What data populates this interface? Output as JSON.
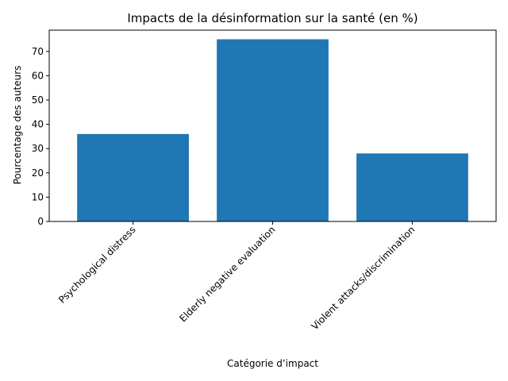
{
  "chart_data": {
    "type": "bar",
    "title": "Impacts de la désinformation sur la santé (en %)",
    "xlabel": "Catégorie d’impact",
    "ylabel": "Pourcentage des auteurs",
    "categories": [
      "Psychological distress",
      "Elderly negative evaluation",
      "Violent attacks/discrimination"
    ],
    "values": [
      36,
      75,
      28
    ],
    "ylim": [
      0,
      78.75
    ],
    "yticks": [
      0,
      10,
      20,
      30,
      40,
      50,
      60,
      70
    ],
    "bar_color": "#1f77b4",
    "grid": false,
    "legend": "none"
  }
}
